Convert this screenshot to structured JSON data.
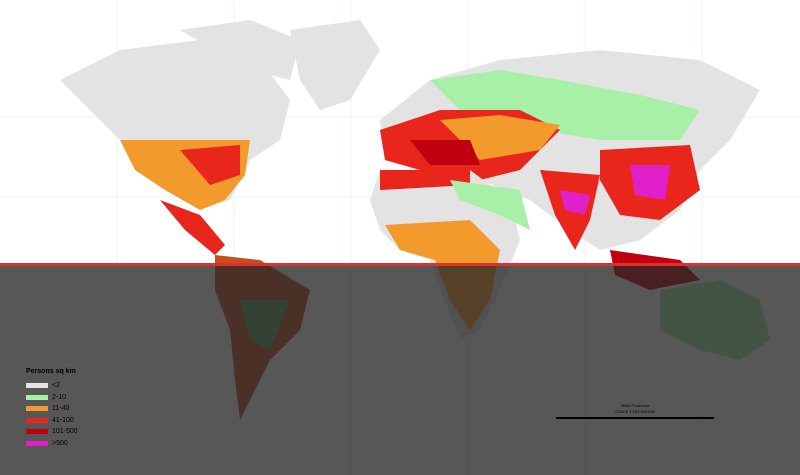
{
  "legend": {
    "title": "Persons sq km",
    "items": [
      {
        "label": "<2",
        "color": "#e3e3e3"
      },
      {
        "label": "2-10",
        "color": "#a8f0a8"
      },
      {
        "label": "11-40",
        "color": "#f39a2c"
      },
      {
        "label": "41-100",
        "color": "#e8261c"
      },
      {
        "label": "101-500",
        "color": "#c00010"
      },
      {
        "label": ">500",
        "color": "#e020c8"
      }
    ]
  },
  "scale": {
    "projection": "Miller Projection",
    "scale_text": "SCALE 1:100,000,000"
  },
  "colors": {
    "ocean": "#ffffff",
    "grid": "#cfe9f2",
    "highlight_line": "#e0302a"
  }
}
